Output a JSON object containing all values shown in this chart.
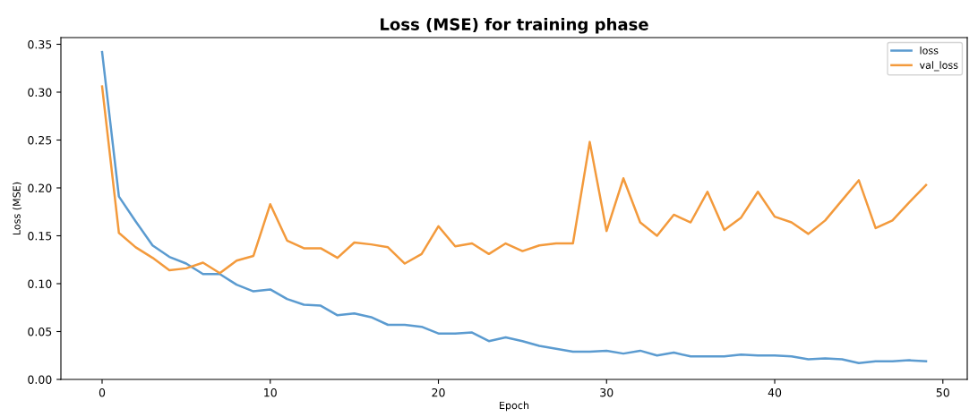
{
  "chart_data": {
    "type": "line",
    "title": "Loss (MSE) for training phase",
    "xlabel": "Epoch",
    "ylabel": "Loss (MSE)",
    "x": [
      0,
      1,
      2,
      3,
      4,
      5,
      6,
      7,
      8,
      9,
      10,
      11,
      12,
      13,
      14,
      15,
      16,
      17,
      18,
      19,
      20,
      21,
      22,
      23,
      24,
      25,
      26,
      27,
      28,
      29,
      30,
      31,
      32,
      33,
      34,
      35,
      36,
      37,
      38,
      39,
      40,
      41,
      42,
      43,
      44,
      45,
      46,
      47,
      48,
      49
    ],
    "series": [
      {
        "name": "loss",
        "color": "#5b9bd0",
        "values": [
          0.342,
          0.191,
          0.165,
          0.14,
          0.128,
          0.121,
          0.11,
          0.11,
          0.099,
          0.092,
          0.094,
          0.084,
          0.078,
          0.077,
          0.067,
          0.069,
          0.065,
          0.057,
          0.057,
          0.055,
          0.048,
          0.048,
          0.049,
          0.04,
          0.044,
          0.04,
          0.035,
          0.032,
          0.029,
          0.029,
          0.03,
          0.027,
          0.03,
          0.025,
          0.028,
          0.024,
          0.024,
          0.024,
          0.026,
          0.025,
          0.025,
          0.024,
          0.021,
          0.022,
          0.021,
          0.017,
          0.019,
          0.019,
          0.02,
          0.019
        ]
      },
      {
        "name": "val_loss",
        "color": "#f39a3c",
        "values": [
          0.306,
          0.153,
          0.138,
          0.127,
          0.114,
          0.116,
          0.122,
          0.111,
          0.124,
          0.129,
          0.183,
          0.145,
          0.137,
          0.137,
          0.127,
          0.143,
          0.141,
          0.138,
          0.121,
          0.131,
          0.16,
          0.139,
          0.142,
          0.131,
          0.142,
          0.134,
          0.14,
          0.142,
          0.142,
          0.248,
          0.155,
          0.21,
          0.164,
          0.15,
          0.172,
          0.164,
          0.196,
          0.156,
          0.169,
          0.196,
          0.17,
          0.164,
          0.152,
          0.166,
          0.187,
          0.208,
          0.158,
          0.166,
          0.185,
          0.203
        ]
      }
    ],
    "xlim": [
      -2.45,
      51.45
    ],
    "xticks": [
      0,
      10,
      20,
      30,
      40,
      50
    ],
    "ylim": [
      0,
      0.357
    ],
    "yticks": [
      {
        "value": 0,
        "label": "0.00"
      },
      {
        "value": 0.05,
        "label": "0.05"
      },
      {
        "value": 0.1,
        "label": "0.10"
      },
      {
        "value": 0.15,
        "label": "0.15"
      },
      {
        "value": 0.2,
        "label": "0.20"
      },
      {
        "value": 0.25,
        "label": "0.25"
      },
      {
        "value": 0.3,
        "label": "0.30"
      },
      {
        "value": 0.35,
        "label": "0.35"
      }
    ],
    "legend": "top right",
    "grid": false
  }
}
